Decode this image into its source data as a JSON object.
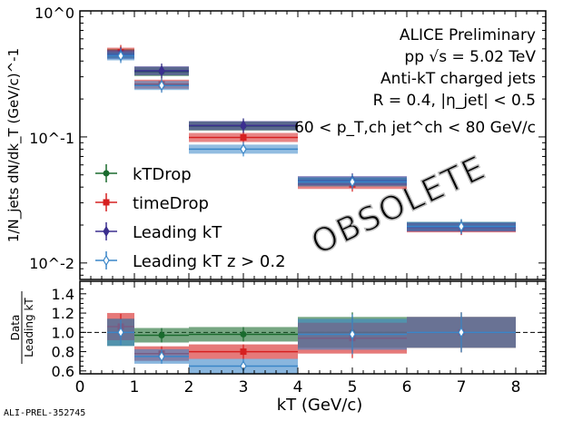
{
  "chart_data": [
    {
      "type": "scatter",
      "panel": "main",
      "yscale": "log",
      "ylim": [
        0.0074,
        1.0
      ],
      "xlim": [
        0,
        8.55
      ],
      "ylabel": "1/N_jets dN/dk_T (GeV/c)^-1",
      "ytick_labels": [
        {
          "v": 1,
          "t": "10^0"
        },
        {
          "v": 0.1,
          "t": "10^-1"
        },
        {
          "v": 0.01,
          "t": "10^-2"
        }
      ],
      "annotations": [
        "ALICE Preliminary",
        "pp √s = 5.02 TeV",
        "Anti-kT charged jets",
        "R = 0.4, |η_jet| < 0.5",
        "60 < p_T,ch jet^ch < 80 GeV/c"
      ],
      "watermark": "OBSOLETE",
      "legend_placement": "lower-left",
      "bins": [
        [
          0.5,
          1
        ],
        [
          1,
          2
        ],
        [
          2,
          4
        ],
        [
          4,
          6
        ],
        [
          6,
          8
        ]
      ],
      "series": [
        {
          "name": "kTDrop",
          "color": "#1a6b2e",
          "marker": "circle",
          "values": [
            0.46,
            0.33,
            0.122,
            0.044,
            0.0195
          ]
        },
        {
          "name": "timeDrop",
          "color": "#d62020",
          "marker": "square",
          "values": [
            0.47,
            0.262,
            0.099,
            0.042,
            0.019
          ]
        },
        {
          "name": "Leading kT",
          "color": "#3b2f8f",
          "marker": "diamond",
          "values": [
            0.45,
            0.335,
            0.123,
            0.045,
            0.0193
          ]
        },
        {
          "name": "Leading kT z > 0.2",
          "color": "#3a86c8",
          "marker": "open-diamond",
          "values": [
            0.44,
            0.256,
            0.08,
            0.044,
            0.0195
          ]
        }
      ]
    },
    {
      "type": "scatter",
      "panel": "ratio",
      "ylim": [
        0.57,
        1.53
      ],
      "ylabel": "Data / Leading kT",
      "ytick_labels": [
        "1.4",
        "1.2",
        "1.0",
        "0.8",
        "0.6"
      ],
      "xlabel": "kT (GeV/c)",
      "xtick_labels": [
        "0",
        "1",
        "2",
        "3",
        "4",
        "5",
        "6",
        "7",
        "8"
      ],
      "reference_line": 1.0,
      "series": [
        {
          "name": "kTDrop",
          "values": [
            1.0,
            0.97,
            0.98,
            1.0,
            1.0
          ]
        },
        {
          "name": "timeDrop",
          "values": [
            1.06,
            0.78,
            0.8,
            0.94,
            1.0
          ]
        },
        {
          "name": "Leading kT z > 0.2",
          "values": [
            1.0,
            0.75,
            0.65,
            0.98,
            1.0
          ]
        }
      ]
    }
  ],
  "footer_id": "ALI-PREL-352745"
}
